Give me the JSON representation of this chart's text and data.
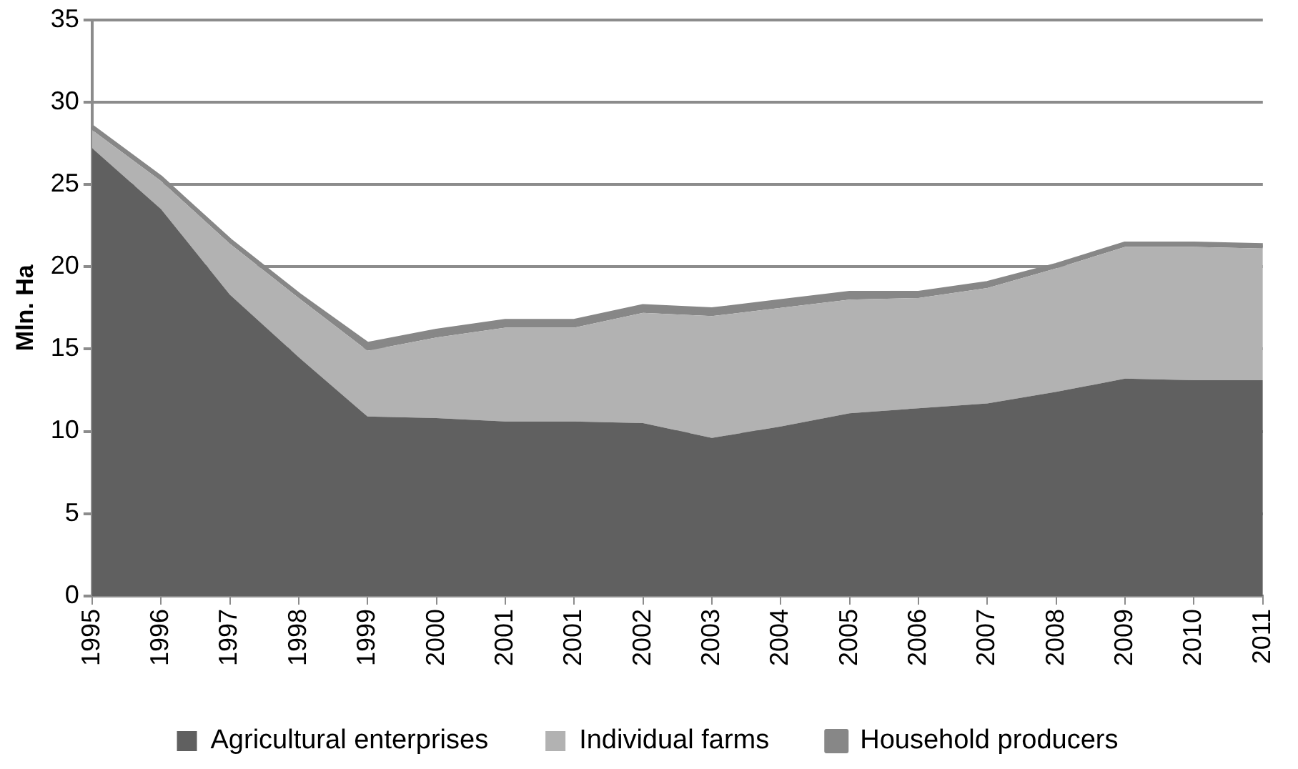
{
  "chart_data": {
    "type": "area",
    "ylabel": "Mln. Ha",
    "stacked": true,
    "grid": "y",
    "legend": "bottom",
    "marker": "none",
    "categories": [
      "1995",
      "1996",
      "1997",
      "1998",
      "1999",
      "2000",
      "2001",
      "2001",
      "2002",
      "2003",
      "2004",
      "2005",
      "2006",
      "2007",
      "2008",
      "2009",
      "2010",
      "2011"
    ],
    "ylim": [
      0,
      35
    ],
    "yticks": [
      0,
      5,
      10,
      15,
      20,
      25,
      30,
      35
    ],
    "series": [
      {
        "name": "Agricultural enterprises",
        "color": "#606060",
        "values": [
          27.2,
          23.5,
          18.3,
          14.5,
          10.9,
          10.8,
          10.6,
          10.6,
          10.5,
          9.6,
          10.3,
          11.1,
          11.4,
          11.7,
          12.4,
          13.2,
          13.1,
          13.1
        ]
      },
      {
        "name": "Individual farms",
        "color": "#b2b2b2",
        "values": [
          1.1,
          1.7,
          3.1,
          3.6,
          4.0,
          4.9,
          5.7,
          5.7,
          6.7,
          7.4,
          7.2,
          6.9,
          6.7,
          7.0,
          7.5,
          8.0,
          8.1,
          8.0
        ]
      },
      {
        "name": "Household producers",
        "color": "#878787",
        "values": [
          0.2,
          0.2,
          0.2,
          0.2,
          0.4,
          0.4,
          0.4,
          0.4,
          0.4,
          0.4,
          0.4,
          0.4,
          0.3,
          0.3,
          0.2,
          0.2,
          0.2,
          0.2
        ]
      }
    ]
  }
}
